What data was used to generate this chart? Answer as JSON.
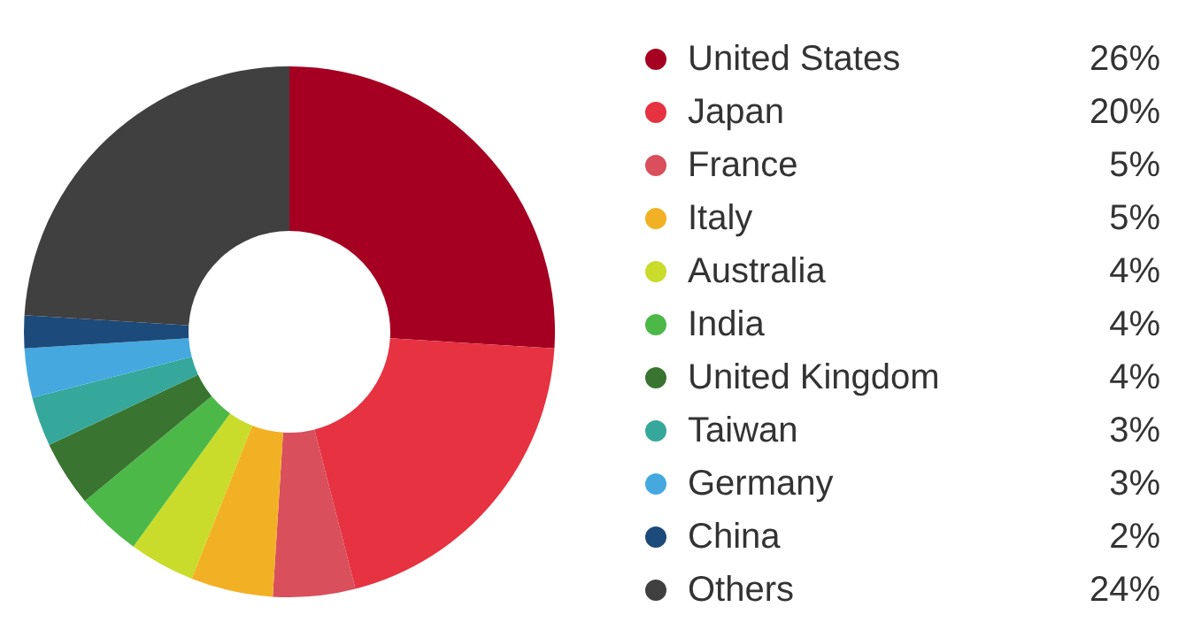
{
  "chart_data": {
    "type": "donut",
    "categories": [
      "United States",
      "Japan",
      "France",
      "Italy",
      "Australia",
      "India",
      "United Kingdom",
      "Taiwan",
      "Germany",
      "China",
      "Others"
    ],
    "values": [
      26,
      20,
      5,
      5,
      4,
      4,
      4,
      3,
      3,
      2,
      24
    ],
    "value_labels": [
      "26%",
      "20%",
      "5%",
      "5%",
      "4%",
      "4%",
      "4%",
      "3%",
      "3%",
      "2%",
      "24%"
    ],
    "colors": [
      "#a50021",
      "#e63241",
      "#d94f5c",
      "#f2b124",
      "#c9dc2b",
      "#4cb848",
      "#3a7431",
      "#35a89b",
      "#45a9e0",
      "#1c4a7a",
      "#404040"
    ],
    "legend": "right"
  }
}
